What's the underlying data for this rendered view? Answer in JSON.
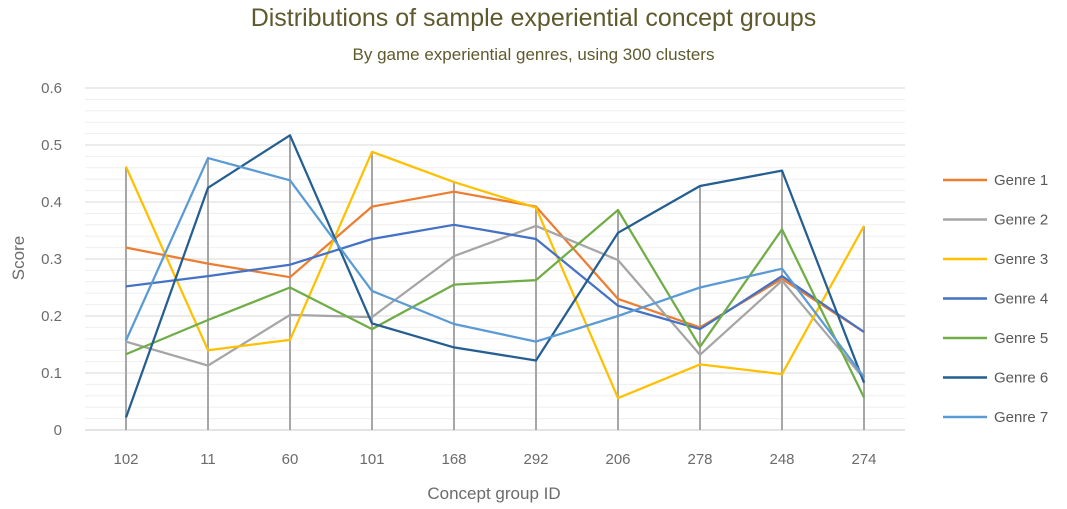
{
  "chart_data": {
    "type": "line",
    "title": "Distributions of sample experiential concept groups",
    "subtitle": "By game experiential genres, using 300 clusters",
    "xlabel": "Concept group ID",
    "ylabel": "Score",
    "ylim": [
      0,
      0.6
    ],
    "yticks": [
      "0",
      "0.1",
      "0.2",
      "0.3",
      "0.4",
      "0.5",
      "0.6"
    ],
    "categories": [
      "102",
      "11",
      "60",
      "101",
      "168",
      "292",
      "206",
      "278",
      "248",
      "274"
    ],
    "grid": true,
    "drop_lines": true,
    "legend_position": "right",
    "series": [
      {
        "name": "Genre 1",
        "color": "#ED7D31",
        "values": [
          0.32,
          0.292,
          0.268,
          0.392,
          0.418,
          0.392,
          0.23,
          0.18,
          0.265,
          0.172
        ]
      },
      {
        "name": "Genre 2",
        "color": "#A5A5A5",
        "values": [
          0.155,
          0.113,
          0.202,
          0.198,
          0.305,
          0.358,
          0.298,
          0.132,
          0.262,
          0.09
        ]
      },
      {
        "name": "Genre 3",
        "color": "#FFC000",
        "values": [
          0.462,
          0.14,
          0.158,
          0.488,
          0.435,
          0.39,
          0.056,
          0.115,
          0.098,
          0.358
        ]
      },
      {
        "name": "Genre 4",
        "color": "#4472C4",
        "values": [
          0.252,
          0.27,
          0.29,
          0.335,
          0.36,
          0.335,
          0.218,
          0.177,
          0.27,
          0.172
        ]
      },
      {
        "name": "Genre 5",
        "color": "#70AD47",
        "values": [
          0.133,
          0.193,
          0.25,
          0.177,
          0.255,
          0.263,
          0.386,
          0.146,
          0.352,
          0.057
        ]
      },
      {
        "name": "Genre 6",
        "color": "#255E91",
        "values": [
          0.022,
          0.425,
          0.517,
          0.187,
          0.145,
          0.122,
          0.346,
          0.428,
          0.455,
          0.083
        ]
      },
      {
        "name": "Genre 7",
        "color": "#5B9BD5",
        "values": [
          0.157,
          0.477,
          0.438,
          0.244,
          0.186,
          0.155,
          0.2,
          0.25,
          0.283,
          0.093
        ]
      }
    ]
  }
}
